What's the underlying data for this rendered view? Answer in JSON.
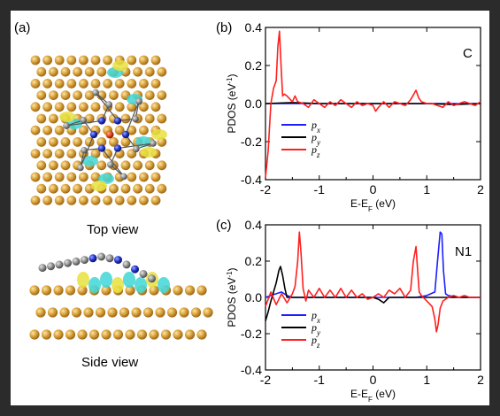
{
  "panels": {
    "a": {
      "label": "(a)",
      "top_caption": "Top view",
      "side_caption": "Side view",
      "colors": {
        "substrate": "#d9a038",
        "carbon": "#808080",
        "nitrogen": "#1c2fc8",
        "metal": "#e04010",
        "cyan_density": "#3fd6d6",
        "yellow_density": "#e8e040"
      }
    },
    "b": {
      "label": "(b)",
      "element": "C"
    },
    "c": {
      "label": "(c)",
      "element": "N1"
    }
  },
  "chart_data": [
    {
      "type": "line",
      "panel": "b",
      "xlabel": "E-E_F (eV)",
      "ylabel": "PDOS (eV^-1)",
      "xlim": [
        -2,
        2
      ],
      "ylim": [
        -0.4,
        0.4
      ],
      "xticks": [
        "-2",
        "-1",
        "0",
        "1",
        "2"
      ],
      "yticks": [
        "0.4",
        "0.2",
        "0.0",
        "-0.2",
        "-0.4"
      ],
      "legend_position": "lower-left",
      "series": [
        {
          "name": "p_x",
          "color": "#1f1fff",
          "x": [
            -2,
            -1,
            0,
            1,
            2
          ],
          "y": [
            0.0,
            0.0,
            0.0,
            0.0,
            0.0
          ]
        },
        {
          "name": "p_y",
          "color": "#000000",
          "x": [
            -2,
            -1.5,
            -1,
            0,
            1,
            1.5,
            2
          ],
          "y": [
            0.0,
            0.005,
            0.0,
            0.0,
            0.0,
            -0.005,
            0.0
          ]
        },
        {
          "name": "p_z",
          "color": "#ff1f1f",
          "x": [
            -2,
            -1.95,
            -1.9,
            -1.85,
            -1.8,
            -1.77,
            -1.74,
            -1.71,
            -1.68,
            -1.65,
            -1.6,
            -1.5,
            -1.45,
            -1.4,
            -1.3,
            -1.2,
            -1.1,
            -1.0,
            -0.9,
            -0.8,
            -0.7,
            -0.6,
            -0.5,
            -0.4,
            -0.3,
            -0.2,
            -0.1,
            0.0,
            0.05,
            0.1,
            0.2,
            0.3,
            0.4,
            0.5,
            0.6,
            0.7,
            0.8,
            0.85,
            0.9,
            1.0,
            1.1,
            1.2,
            1.3,
            1.4,
            1.5,
            1.6,
            1.7,
            1.8,
            1.9,
            2.0
          ],
          "y": [
            -0.39,
            -0.25,
            0.0,
            0.08,
            0.12,
            0.3,
            0.38,
            0.2,
            0.04,
            0.05,
            0.04,
            0.01,
            0.04,
            0.01,
            0.0,
            -0.02,
            0.02,
            0.0,
            -0.02,
            0.01,
            -0.01,
            0.02,
            0.0,
            -0.02,
            0.01,
            -0.01,
            0.0,
            -0.01,
            -0.04,
            -0.02,
            0.01,
            -0.02,
            0.01,
            0.0,
            -0.01,
            0.02,
            0.07,
            0.03,
            0.01,
            0.0,
            0.0,
            -0.01,
            -0.02,
            0.01,
            -0.01,
            0.0,
            0.01,
            0.0,
            -0.01,
            0.01
          ]
        }
      ]
    },
    {
      "type": "line",
      "panel": "c",
      "xlabel": "E-E_F (eV)",
      "ylabel": "PDOS (eV^-1)",
      "xlim": [
        -2,
        2
      ],
      "ylim": [
        -0.4,
        0.4
      ],
      "xticks": [
        "-2",
        "-1",
        "0",
        "1",
        "2"
      ],
      "yticks": [
        "0.4",
        "0.2",
        "0.0",
        "-0.2",
        "-0.4"
      ],
      "legend_position": "lower-left",
      "series": [
        {
          "name": "p_x",
          "color": "#1f1fff",
          "x": [
            -2,
            -1.9,
            -1.8,
            -1.7,
            -1.6,
            -1.5,
            -1.2,
            -0.8,
            -0.4,
            0.0,
            0.4,
            0.8,
            1.0,
            1.15,
            1.2,
            1.25,
            1.28,
            1.31,
            1.35,
            1.4,
            1.6,
            2.0
          ],
          "y": [
            0.0,
            0.01,
            0.02,
            0.03,
            0.01,
            0.0,
            0.0,
            0.0,
            0.0,
            0.0,
            0.0,
            0.0,
            0.01,
            0.03,
            0.2,
            0.36,
            0.35,
            0.15,
            0.02,
            0.01,
            0.0,
            0.0
          ]
        },
        {
          "name": "p_y",
          "color": "#000000",
          "x": [
            -2,
            -1.95,
            -1.9,
            -1.85,
            -1.8,
            -1.75,
            -1.72,
            -1.68,
            -1.64,
            -1.6,
            -1.5,
            -1.3,
            -1.0,
            -0.5,
            0.0,
            0.1,
            0.2,
            0.3,
            0.5,
            1.0,
            1.5,
            2.0
          ],
          "y": [
            -0.13,
            -0.08,
            -0.02,
            0.03,
            0.08,
            0.15,
            0.17,
            0.12,
            0.05,
            0.0,
            0.0,
            0.0,
            0.0,
            0.0,
            0.0,
            -0.01,
            -0.03,
            0.0,
            0.0,
            0.0,
            0.0,
            0.0
          ]
        },
        {
          "name": "p_z",
          "color": "#ff1f1f",
          "x": [
            -2,
            -1.9,
            -1.8,
            -1.7,
            -1.6,
            -1.5,
            -1.45,
            -1.4,
            -1.37,
            -1.34,
            -1.3,
            -1.25,
            -1.2,
            -1.1,
            -1.0,
            -0.9,
            -0.8,
            -0.7,
            -0.6,
            -0.5,
            -0.4,
            -0.3,
            -0.2,
            -0.1,
            0.0,
            0.1,
            0.2,
            0.3,
            0.4,
            0.5,
            0.6,
            0.7,
            0.75,
            0.8,
            0.83,
            0.86,
            0.9,
            1.0,
            1.1,
            1.15,
            1.18,
            1.21,
            1.25,
            1.3,
            1.4,
            1.5,
            1.6,
            1.7,
            1.8,
            1.9,
            2.0
          ],
          "y": [
            -0.05,
            0.03,
            -0.04,
            0.02,
            -0.03,
            0.02,
            0.06,
            0.2,
            0.36,
            0.25,
            0.05,
            -0.02,
            0.04,
            0.0,
            0.05,
            0.0,
            0.04,
            0.0,
            0.05,
            0.0,
            0.04,
            0.0,
            0.02,
            -0.01,
            0.0,
            0.02,
            0.0,
            0.04,
            0.02,
            0.05,
            0.0,
            0.04,
            0.2,
            0.28,
            0.15,
            0.03,
            0.01,
            -0.02,
            -0.05,
            -0.12,
            -0.19,
            -0.15,
            -0.06,
            -0.02,
            0.0,
            0.01,
            0.0,
            0.01,
            0.0,
            0.0,
            0.0
          ]
        }
      ]
    }
  ]
}
